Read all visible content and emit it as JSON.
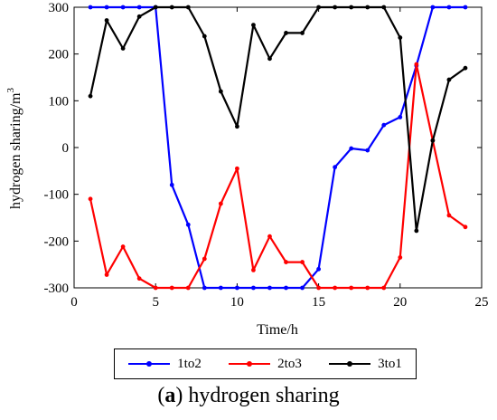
{
  "chart_data": {
    "type": "line",
    "xlabel": "Time/h",
    "ylabel": "hydrogen sharing/m",
    "ylabel_superscript": "3",
    "xlim": [
      0,
      25
    ],
    "ylim": [
      -300,
      300
    ],
    "xticks": [
      "0",
      "5",
      "10",
      "15",
      "20",
      "25"
    ],
    "yticks": [
      "-300",
      "-200",
      "-100",
      "0",
      "100",
      "200",
      "300"
    ],
    "grid": false,
    "legend_position": "bottom",
    "x": [
      1,
      2,
      3,
      4,
      5,
      6,
      7,
      8,
      9,
      10,
      11,
      12,
      13,
      14,
      15,
      16,
      17,
      18,
      19,
      20,
      21,
      22,
      23,
      24
    ],
    "series": [
      {
        "name": "1to2",
        "color": "#0000ff",
        "values": [
          300,
          300,
          300,
          300,
          300,
          -80,
          -165,
          -300,
          -300,
          -300,
          -300,
          -300,
          -300,
          -300,
          -260,
          -42,
          -2,
          -6,
          48,
          65,
          175,
          300,
          300,
          300
        ]
      },
      {
        "name": "2to3",
        "color": "#ff0000",
        "values": [
          -110,
          -272,
          -212,
          -280,
          -300,
          -300,
          -300,
          -238,
          -120,
          -45,
          -262,
          -190,
          -245,
          -245,
          -300,
          -300,
          -300,
          -300,
          -300,
          -235,
          178,
          15,
          -145,
          -170
        ]
      },
      {
        "name": "3to1",
        "color": "#000000",
        "values": [
          110,
          272,
          212,
          280,
          300,
          300,
          300,
          238,
          120,
          45,
          262,
          190,
          245,
          245,
          300,
          300,
          300,
          300,
          300,
          235,
          -178,
          15,
          145,
          170
        ]
      }
    ]
  },
  "caption": {
    "label": "a",
    "text": "hydrogen sharing"
  }
}
